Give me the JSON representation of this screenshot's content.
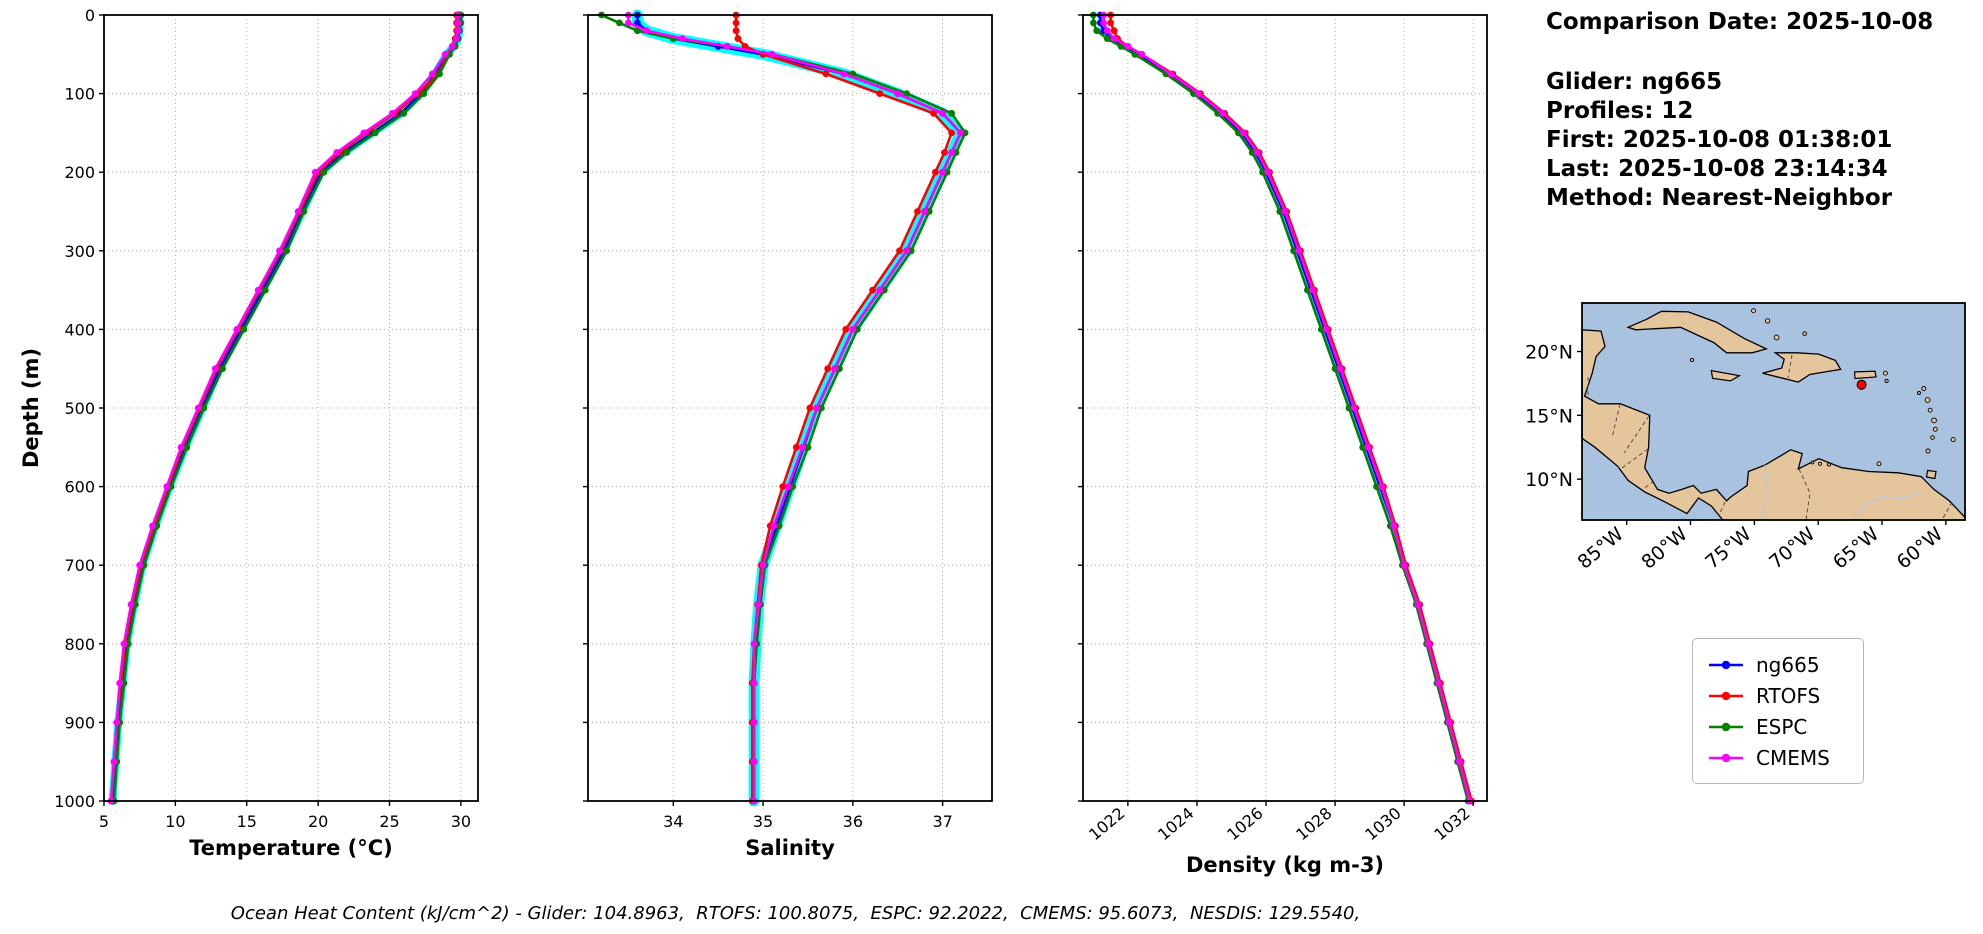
{
  "info": {
    "comparison_date": "Comparison Date: 2025-10-08",
    "glider": "Glider: ng665",
    "profiles": "Profiles: 12",
    "first": "First: 2025-10-08 01:38:01",
    "last": "Last: 2025-10-08 23:14:34",
    "method": "Method: Nearest-Neighbor"
  },
  "footer": "Ocean Heat Content (kJ/cm^2) - Glider: 104.8963,  RTOFS: 100.8075,  ESPC: 92.2022,  CMEMS: 95.6073,  NESDIS: 129.5540,",
  "legend": {
    "items": [
      {
        "label": "ng665",
        "color": "#0000ff"
      },
      {
        "label": "RTOFS",
        "color": "#ff0000"
      },
      {
        "label": "ESPC",
        "color": "#008000"
      },
      {
        "label": "CMEMS",
        "color": "#ff00ff"
      }
    ]
  },
  "chart_data": [
    {
      "type": "line",
      "xlabel": "Temperature (°C)",
      "ylabel": "Depth (m)",
      "xlim": [
        5,
        31.2
      ],
      "ylim": [
        0,
        1000
      ],
      "xticks": [
        5,
        10,
        15,
        20,
        25,
        30
      ],
      "yticks": [
        0,
        100,
        200,
        300,
        400,
        500,
        600,
        700,
        800,
        900,
        1000
      ],
      "rotate_xticklabels": false,
      "show_depth_labels": true,
      "grid": true,
      "envelope": {
        "series": "ng665",
        "color": "#00ffff",
        "width": 8
      },
      "depths": [
        0,
        10,
        20,
        30,
        40,
        50,
        75,
        100,
        125,
        150,
        175,
        200,
        250,
        300,
        350,
        400,
        450,
        500,
        550,
        600,
        650,
        700,
        750,
        800,
        850,
        900,
        950,
        1000
      ],
      "series": [
        {
          "name": "ng665",
          "color": "#0000ff",
          "values": [
            29.9,
            29.9,
            29.9,
            29.8,
            29.5,
            29.0,
            28.2,
            27.2,
            25.8,
            23.8,
            21.8,
            20.2,
            18.9,
            17.6,
            16.1,
            14.6,
            13.1,
            11.9,
            10.7,
            9.6,
            8.6,
            7.7,
            7.1,
            6.6,
            6.3,
            6.0,
            5.8,
            5.6
          ]
        },
        {
          "name": "RTOFS",
          "color": "#ff0000",
          "values": [
            29.7,
            29.7,
            29.7,
            29.6,
            29.4,
            29.1,
            28.4,
            27.0,
            25.4,
            23.4,
            21.5,
            20.0,
            18.7,
            17.4,
            15.9,
            14.4,
            12.9,
            11.7,
            10.5,
            9.5,
            8.5,
            7.6,
            7.0,
            6.5,
            6.2,
            5.9,
            5.7,
            5.5
          ]
        },
        {
          "name": "ESPC",
          "color": "#008000",
          "values": [
            30.0,
            30.0,
            29.9,
            29.8,
            29.6,
            29.2,
            28.5,
            27.4,
            26.0,
            24.0,
            22.0,
            20.4,
            19.0,
            17.8,
            16.3,
            14.8,
            13.3,
            12.0,
            10.8,
            9.7,
            8.7,
            7.8,
            7.2,
            6.7,
            6.4,
            6.1,
            5.9,
            5.7
          ]
        },
        {
          "name": "CMEMS",
          "color": "#ff00ff",
          "values": [
            29.8,
            29.8,
            29.8,
            29.7,
            29.4,
            28.9,
            28.0,
            26.8,
            25.2,
            23.2,
            21.3,
            19.8,
            18.6,
            17.3,
            15.8,
            14.3,
            12.8,
            11.6,
            10.4,
            9.4,
            8.4,
            7.5,
            6.9,
            6.4,
            6.1,
            5.9,
            5.7,
            5.5
          ]
        }
      ]
    },
    {
      "type": "line",
      "xlabel": "Salinity",
      "ylabel": "",
      "xlim": [
        33.05,
        37.55
      ],
      "ylim": [
        0,
        1000
      ],
      "xticks": [
        34,
        35,
        36,
        37
      ],
      "yticks": [
        0,
        100,
        200,
        300,
        400,
        500,
        600,
        700,
        800,
        900,
        1000
      ],
      "rotate_xticklabels": false,
      "show_depth_labels": false,
      "grid": true,
      "envelope": {
        "series": "ng665",
        "color": "#00ffff",
        "width": 11
      },
      "depths": [
        0,
        10,
        20,
        30,
        40,
        50,
        75,
        100,
        125,
        150,
        175,
        200,
        250,
        300,
        350,
        400,
        450,
        500,
        550,
        600,
        650,
        700,
        750,
        800,
        850,
        900,
        950,
        1000
      ],
      "series": [
        {
          "name": "ng665",
          "color": "#0000ff",
          "values": [
            33.6,
            33.6,
            33.7,
            34.0,
            34.5,
            35.0,
            35.9,
            36.5,
            37.0,
            37.2,
            37.1,
            37.0,
            36.8,
            36.6,
            36.3,
            36.0,
            35.8,
            35.6,
            35.45,
            35.3,
            35.15,
            35.0,
            34.95,
            34.92,
            34.9,
            34.9,
            34.9,
            34.9
          ]
        },
        {
          "name": "RTOFS",
          "color": "#ff0000",
          "values": [
            34.7,
            34.7,
            34.7,
            34.72,
            34.8,
            35.0,
            35.7,
            36.3,
            36.9,
            37.1,
            37.02,
            36.92,
            36.72,
            36.52,
            36.22,
            35.92,
            35.72,
            35.52,
            35.37,
            35.22,
            35.08,
            34.98,
            34.94,
            34.9,
            34.88,
            34.88,
            34.88,
            34.88
          ]
        },
        {
          "name": "ESPC",
          "color": "#008000",
          "values": [
            33.2,
            33.4,
            33.6,
            34.0,
            34.6,
            35.1,
            36.0,
            36.6,
            37.1,
            37.25,
            37.15,
            37.05,
            36.85,
            36.65,
            36.35,
            36.05,
            35.85,
            35.65,
            35.5,
            35.33,
            35.18,
            35.02,
            34.97,
            34.93,
            34.9,
            34.9,
            34.9,
            34.9
          ]
        },
        {
          "name": "CMEMS",
          "color": "#ff00ff",
          "values": [
            33.5,
            33.5,
            33.7,
            34.1,
            34.6,
            35.1,
            35.9,
            36.5,
            37.0,
            37.2,
            37.1,
            37.0,
            36.8,
            36.6,
            36.3,
            36.0,
            35.8,
            35.6,
            35.44,
            35.28,
            35.12,
            35.0,
            34.95,
            34.9,
            34.9,
            34.9,
            34.9,
            34.9
          ]
        }
      ]
    },
    {
      "type": "line",
      "xlabel": "Density (kg m-3)",
      "ylabel": "",
      "xlim": [
        1020.7,
        1032.4
      ],
      "ylim": [
        0,
        1000
      ],
      "xticks": [
        1022,
        1024,
        1026,
        1028,
        1030,
        1032
      ],
      "yticks": [
        0,
        100,
        200,
        300,
        400,
        500,
        600,
        700,
        800,
        900,
        1000
      ],
      "rotate_xticklabels": true,
      "show_depth_labels": false,
      "grid": true,
      "envelope": {
        "series": "ng665",
        "color": "#00ffff",
        "width": 5
      },
      "depths": [
        0,
        10,
        20,
        30,
        40,
        50,
        75,
        100,
        125,
        150,
        175,
        200,
        250,
        300,
        350,
        400,
        450,
        500,
        550,
        600,
        650,
        700,
        750,
        800,
        850,
        900,
        950,
        1000
      ],
      "series": [
        {
          "name": "ng665",
          "color": "#0000ff",
          "values": [
            1021.2,
            1021.2,
            1021.3,
            1021.5,
            1021.9,
            1022.3,
            1023.2,
            1024.0,
            1024.7,
            1025.3,
            1025.7,
            1026.0,
            1026.5,
            1026.9,
            1027.3,
            1027.7,
            1028.1,
            1028.5,
            1028.9,
            1029.3,
            1029.7,
            1030.0,
            1030.4,
            1030.7,
            1031.0,
            1031.3,
            1031.6,
            1031.9
          ]
        },
        {
          "name": "RTOFS",
          "color": "#ff0000",
          "values": [
            1021.5,
            1021.5,
            1021.6,
            1021.7,
            1022.0,
            1022.4,
            1023.3,
            1024.1,
            1024.8,
            1025.4,
            1025.8,
            1026.1,
            1026.6,
            1027.0,
            1027.4,
            1027.8,
            1028.2,
            1028.6,
            1029.0,
            1029.4,
            1029.75,
            1030.05,
            1030.45,
            1030.75,
            1031.05,
            1031.35,
            1031.65,
            1031.95
          ]
        },
        {
          "name": "ESPC",
          "color": "#008000",
          "values": [
            1021.0,
            1021.0,
            1021.1,
            1021.4,
            1021.8,
            1022.2,
            1023.1,
            1023.9,
            1024.6,
            1025.2,
            1025.6,
            1025.9,
            1026.4,
            1026.8,
            1027.2,
            1027.6,
            1028.0,
            1028.4,
            1028.8,
            1029.2,
            1029.6,
            1029.95,
            1030.35,
            1030.65,
            1030.95,
            1031.25,
            1031.55,
            1031.85
          ]
        },
        {
          "name": "CMEMS",
          "color": "#ff00ff",
          "values": [
            1021.3,
            1021.3,
            1021.4,
            1021.6,
            1022.0,
            1022.4,
            1023.25,
            1024.05,
            1024.75,
            1025.35,
            1025.75,
            1026.05,
            1026.55,
            1026.95,
            1027.35,
            1027.75,
            1028.15,
            1028.55,
            1028.95,
            1029.35,
            1029.7,
            1030.0,
            1030.4,
            1030.7,
            1031.0,
            1031.3,
            1031.6,
            1031.9
          ]
        }
      ]
    }
  ],
  "map": {
    "extent": {
      "lon_min": -88.5,
      "lon_max": -58.5,
      "lat_min": 6.8,
      "lat_max": 23.8
    },
    "lat_ticks": [
      {
        "value": 20,
        "label": "20°N"
      },
      {
        "value": 15,
        "label": "15°N"
      },
      {
        "value": 10,
        "label": "10°N"
      }
    ],
    "lon_ticks": [
      {
        "value": -85,
        "label": "85°W"
      },
      {
        "value": -80,
        "label": "80°W"
      },
      {
        "value": -75,
        "label": "75°W"
      },
      {
        "value": -70,
        "label": "70°W"
      },
      {
        "value": -65,
        "label": "65°W"
      },
      {
        "value": -60,
        "label": "60°W"
      }
    ],
    "marker": {
      "lon": -66.6,
      "lat": 17.4,
      "color": "#ff0000"
    },
    "ocean_color": "#a9c2e0",
    "land_color": "#e4c59c",
    "coast_color": "#000000"
  }
}
